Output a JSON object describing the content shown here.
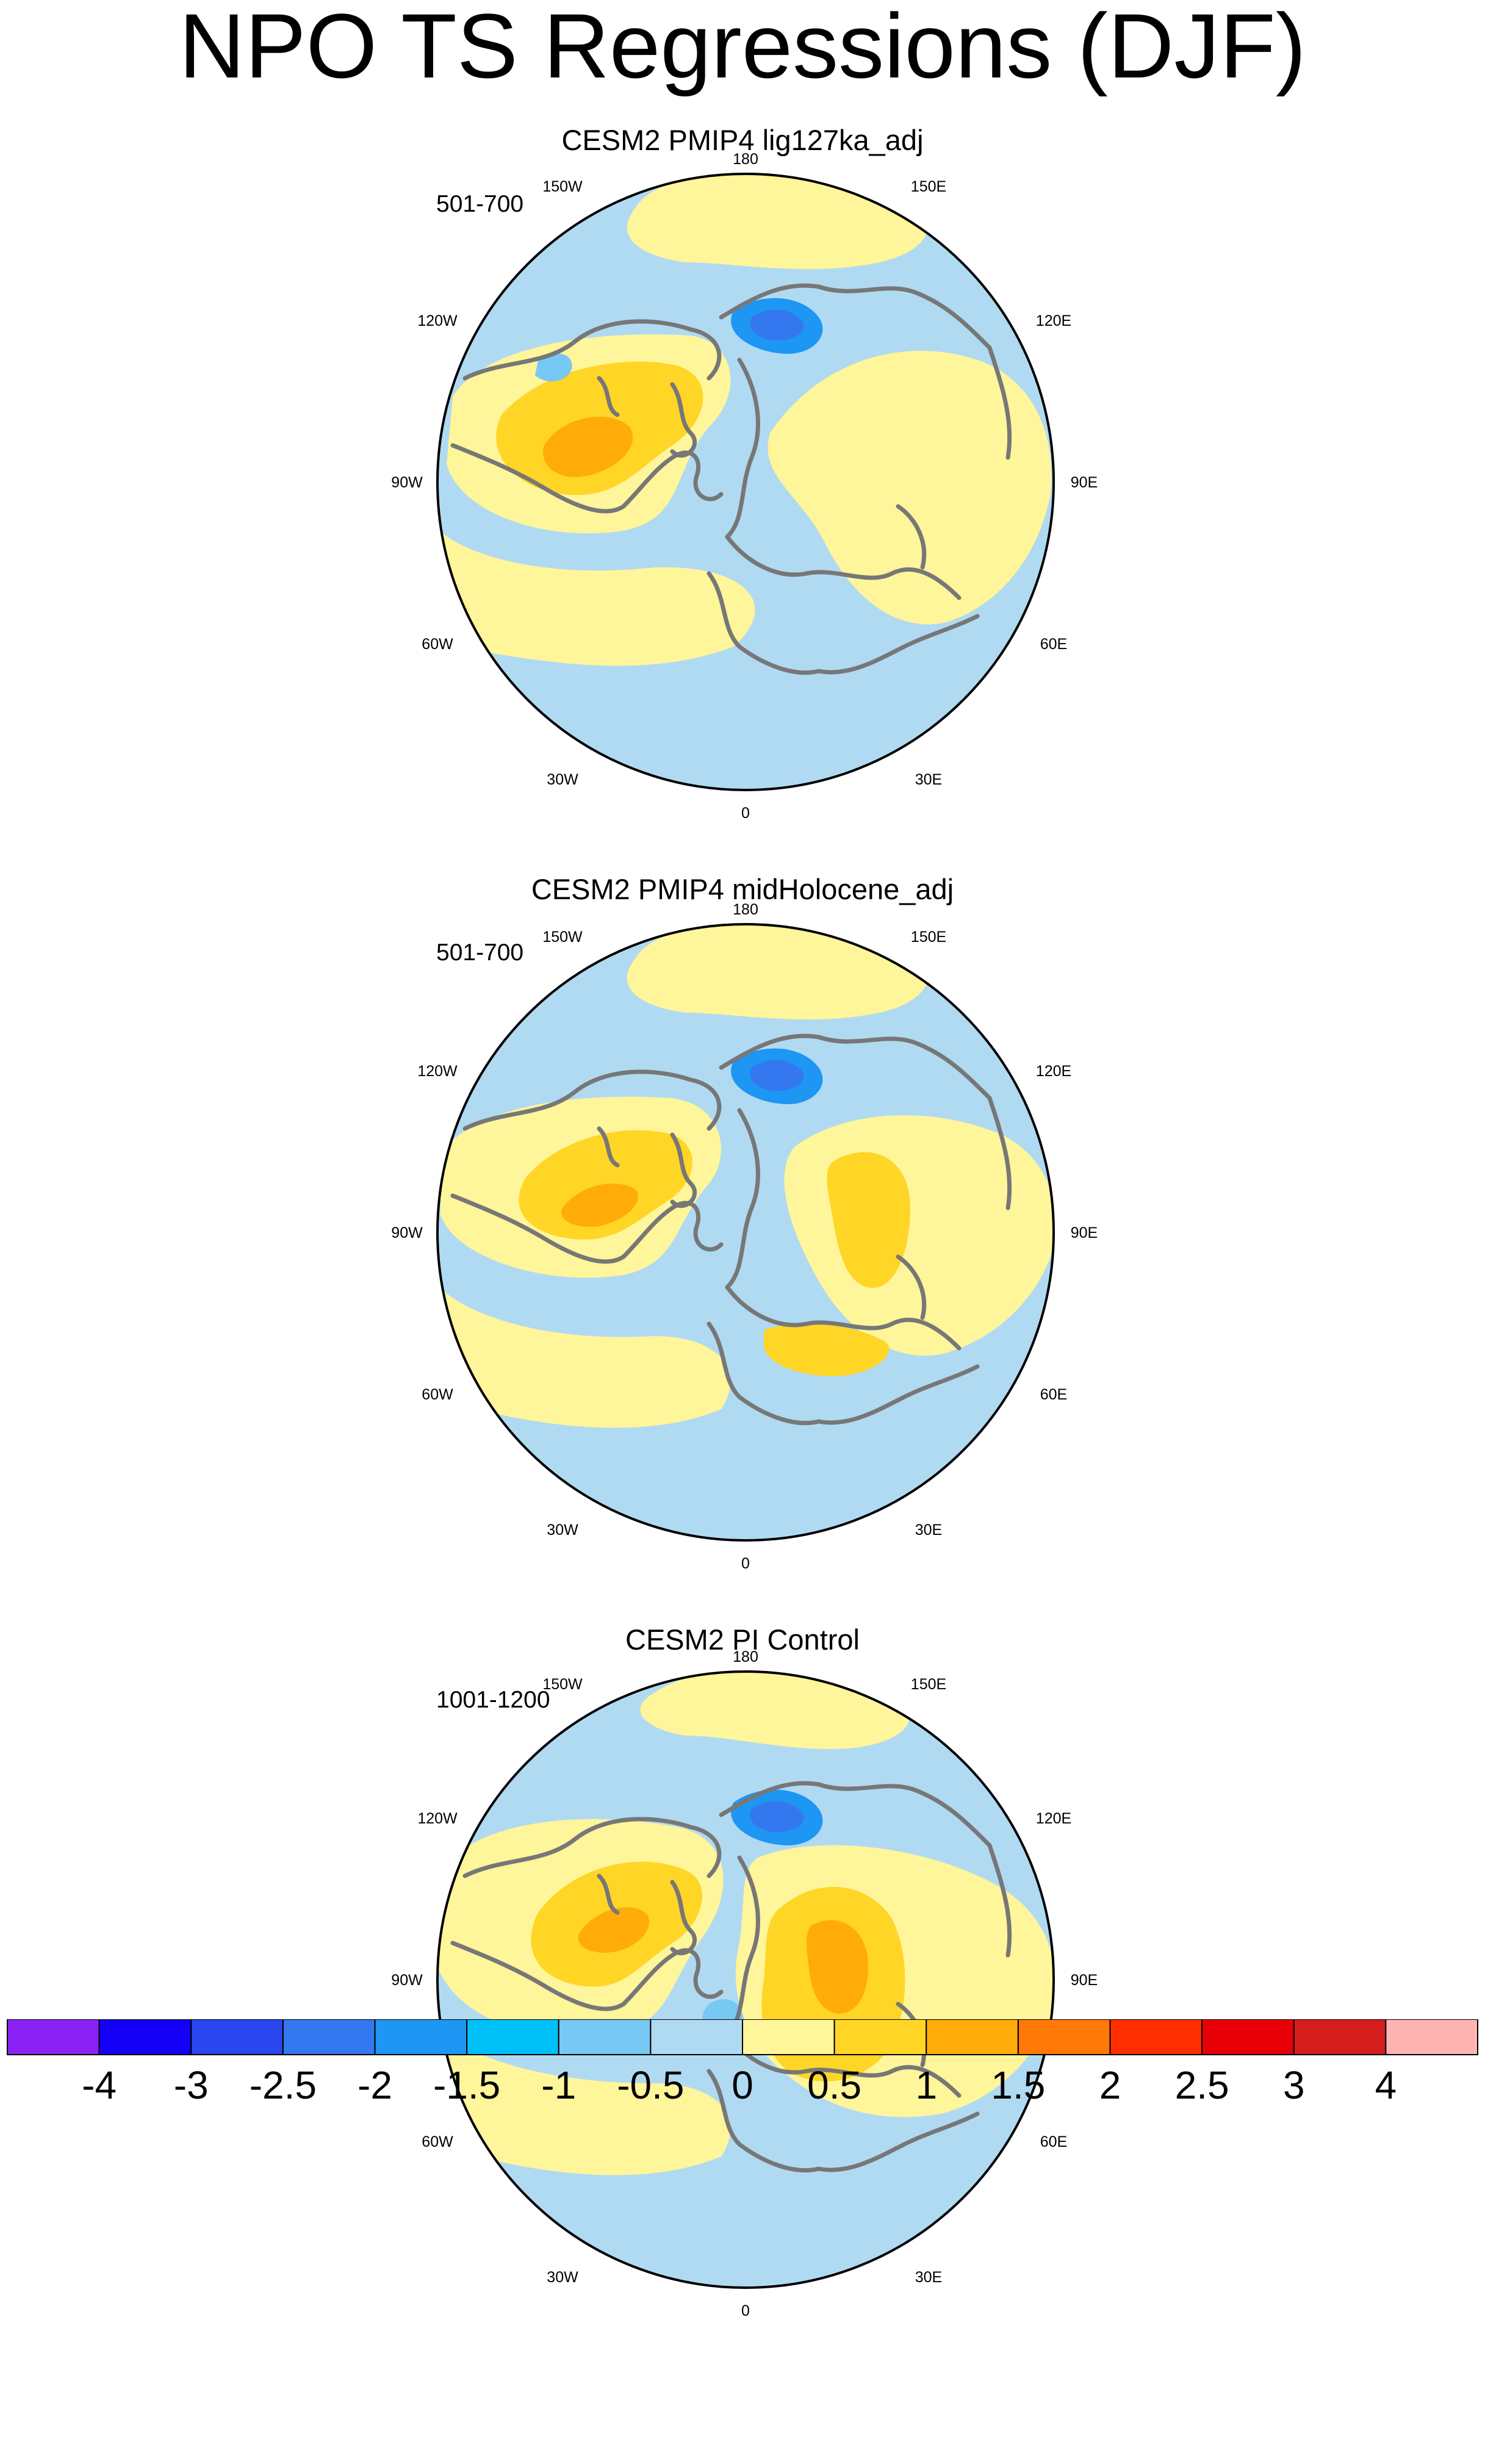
{
  "title": "NPO TS Regressions (DJF)",
  "panels": [
    {
      "title": "CESM2 PMIP4 lig127ka_adj",
      "period": "501-700"
    },
    {
      "title": "CESM2 PMIP4 midHolocene_adj",
      "period": "501-700"
    },
    {
      "title": "CESM2 PI Control",
      "period": "1001-1200"
    }
  ],
  "longitude_labels": [
    "180",
    "150E",
    "120E",
    "90E",
    "60E",
    "30E",
    "0",
    "30W",
    "60W",
    "90W",
    "120W",
    "150W"
  ],
  "projection": "north polar stereographic",
  "colorbar": {
    "levels": [
      "-4",
      "-3",
      "-2.5",
      "-2",
      "-1.5",
      "-1",
      "-0.5",
      "0",
      "0.5",
      "1",
      "1.5",
      "2",
      "2.5",
      "3",
      "4"
    ],
    "colors": [
      "#8a22f4",
      "#1400f6",
      "#2a46ee",
      "#3478f0",
      "#1e96f4",
      "#00c0f8",
      "#78c8f4",
      "#b0daf2",
      "#fff59a",
      "#ffd526",
      "#ffac08",
      "#ff7808",
      "#ff2e00",
      "#e80008",
      "#d41e1e",
      "#ffb4b4"
    ]
  },
  "colors": {
    "coastline": "#777777",
    "land_sea_neutral": "#b0daf2",
    "warm_pale": "#fff59a"
  }
}
